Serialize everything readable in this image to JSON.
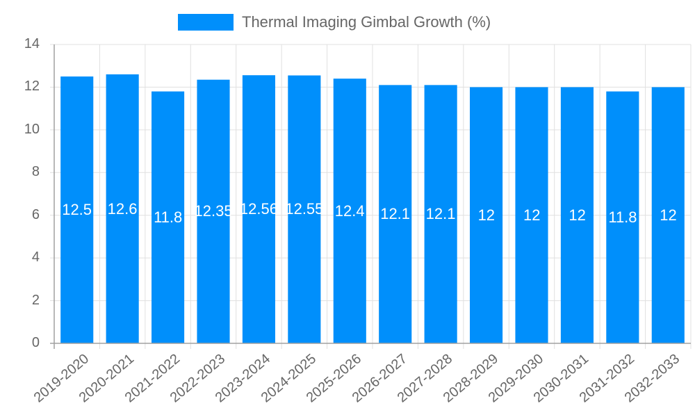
{
  "chart_data": {
    "type": "bar",
    "title": "",
    "xlabel": "",
    "ylabel": "",
    "ylim": [
      0,
      14
    ],
    "yticks": [
      0,
      2,
      4,
      6,
      8,
      10,
      12,
      14
    ],
    "grid": true,
    "legend_position": "top",
    "categories": [
      "2019-2020",
      "2020-2021",
      "2021-2022",
      "2022-2023",
      "2023-2024",
      "2024-2025",
      "2025-2026",
      "2026-2027",
      "2027-2028",
      "2028-2029",
      "2029-2030",
      "2030-2031",
      "2031-2032",
      "2032-2033"
    ],
    "series": [
      {
        "name": "Thermal Imaging Gimbal Growth (%)",
        "color": "#008ffb",
        "values": [
          12.5,
          12.6,
          11.8,
          12.35,
          12.56,
          12.55,
          12.4,
          12.1,
          12.1,
          12,
          12,
          12,
          11.8,
          12
        ],
        "data_labels": [
          "12.5",
          "12.6",
          "11.8",
          "12.35",
          "12.56",
          "12.55",
          "12.4",
          "12.1",
          "12.1",
          "12",
          "12",
          "12",
          "11.8",
          "12"
        ]
      }
    ]
  },
  "legend": {
    "label": "Thermal Imaging Gimbal Growth (%)",
    "color": "#008ffb"
  },
  "colors": {
    "bar": "#008ffb",
    "grid": "#e0e0e0",
    "axis": "#a0a0a0",
    "text": "#666666"
  }
}
